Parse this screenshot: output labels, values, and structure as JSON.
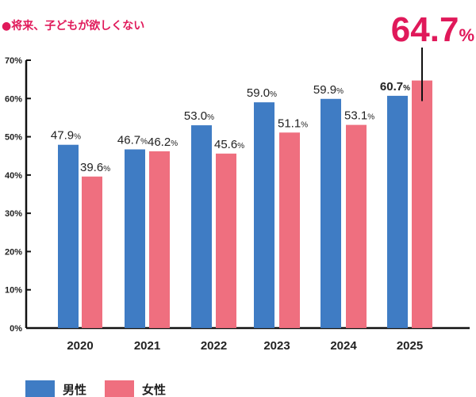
{
  "chart_data": {
    "type": "bar",
    "title": "●将来、子どもが欲しくない",
    "categories": [
      "2020",
      "2021",
      "2022",
      "2023",
      "2024",
      "2025"
    ],
    "series": [
      {
        "name": "男性",
        "color": "#3f7cc4",
        "values": [
          47.9,
          46.7,
          53.0,
          59.0,
          59.9,
          60.7
        ]
      },
      {
        "name": "女性",
        "color": "#ef6f7f",
        "values": [
          39.6,
          46.2,
          45.6,
          51.1,
          53.1,
          64.7
        ]
      }
    ],
    "data_labels": {
      "男性": [
        "47.9",
        "46.7",
        "53.0",
        "59.0",
        "59.9",
        "60.7"
      ],
      "女性": [
        "39.6",
        "46.2",
        "45.6",
        "51.1",
        "53.1",
        "64.7"
      ]
    },
    "unit": "%",
    "yticks": [
      "0%",
      "10%",
      "20%",
      "30%",
      "40%",
      "50%",
      "60%",
      "70%"
    ],
    "ylim": [
      0,
      70
    ],
    "grid": false,
    "legend": "bottom-left",
    "accent_color": "#e0195a"
  }
}
